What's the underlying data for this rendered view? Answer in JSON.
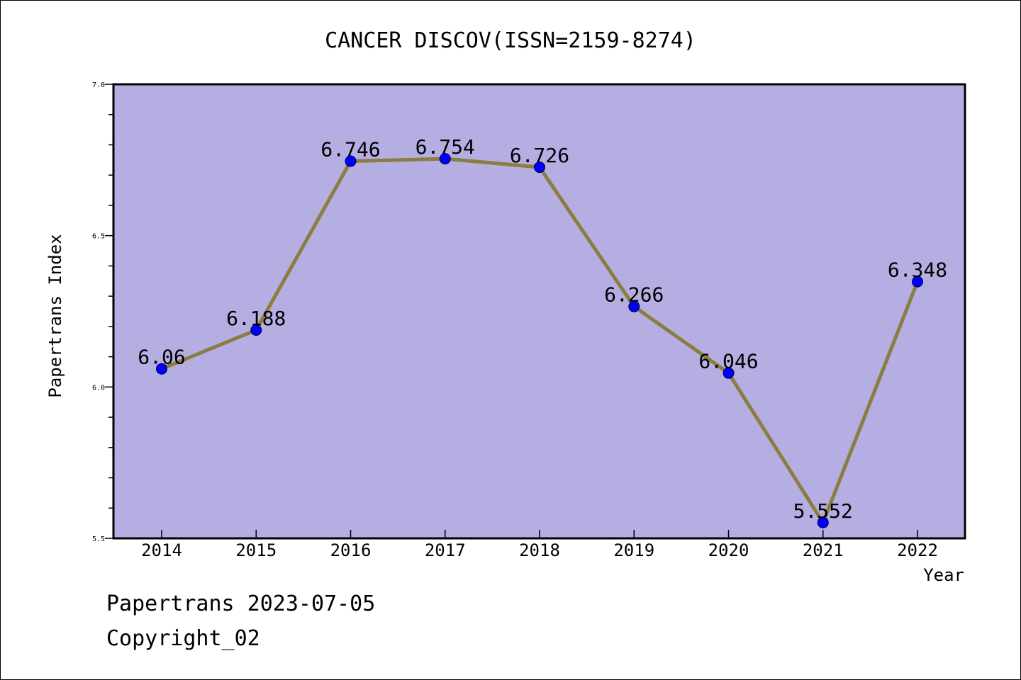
{
  "chart_data": {
    "type": "line",
    "title": "CANCER DISCOV(ISSN=2159-8274)",
    "xlabel": "Year",
    "ylabel": "Papertrans Index",
    "categories": [
      "2014",
      "2015",
      "2016",
      "2017",
      "2018",
      "2019",
      "2020",
      "2021",
      "2022"
    ],
    "values": [
      6.06,
      6.188,
      6.746,
      6.754,
      6.726,
      6.266,
      6.046,
      5.552,
      6.348
    ],
    "value_labels": [
      "6.06",
      "6.188",
      "6.746",
      "6.754",
      "6.726",
      "6.266",
      "6.046",
      "5.552",
      "6.348"
    ],
    "ylim": [
      5.5,
      7.0
    ],
    "yticks": [
      "5.5",
      "6.0",
      "6.5",
      "7.0"
    ],
    "grid": false,
    "colors": {
      "plot_background": "#b4aee2",
      "line": "#8b7d3f",
      "marker": "#0000ff"
    }
  },
  "footer": {
    "line1": "Papertrans 2023-07-05",
    "line2": "Copyright_02"
  }
}
